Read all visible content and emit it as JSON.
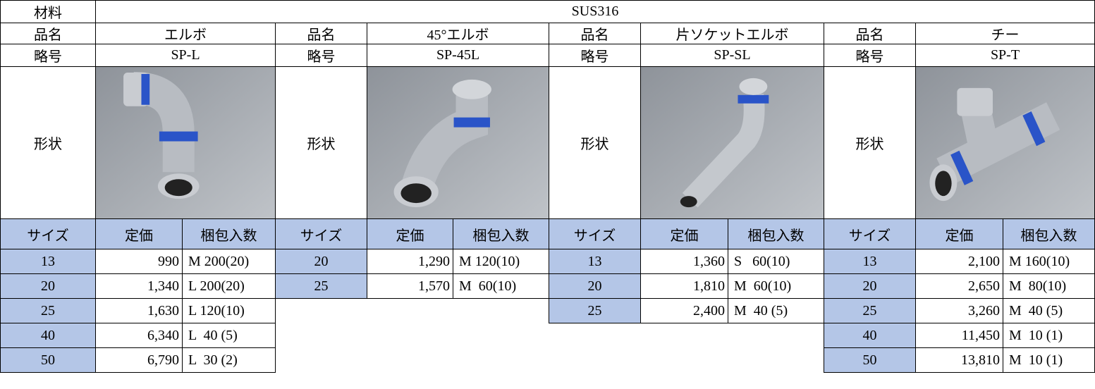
{
  "material": {
    "label": "材料",
    "value": "SUS316"
  },
  "products": [
    {
      "name_label": "品名",
      "name": "エルボ",
      "code_label": "略号",
      "code": "SP-L",
      "shape_label": "形状",
      "headers": [
        "サイズ",
        "定価",
        "梱包入数"
      ],
      "rows": [
        [
          "13",
          "990",
          "M 200(20)"
        ],
        [
          "20",
          "1,340",
          "L 200(20)"
        ],
        [
          "25",
          "1,630",
          "L 120(10)"
        ],
        [
          "40",
          "6,340",
          "L  40 (5)"
        ],
        [
          "50",
          "6,790",
          "L  30 (2)"
        ]
      ]
    },
    {
      "name_label": "品名",
      "name": "45°エルボ",
      "code_label": "略号",
      "code": "SP-45L",
      "shape_label": "形状",
      "headers": [
        "サイズ",
        "定価",
        "梱包入数"
      ],
      "rows": [
        [
          "20",
          "1,290",
          "M 120(10)"
        ],
        [
          "25",
          "1,570",
          "M  60(10)"
        ]
      ]
    },
    {
      "name_label": "品名",
      "name": "片ソケットエルボ",
      "code_label": "略号",
      "code": "SP-SL",
      "shape_label": "形状",
      "headers": [
        "サイズ",
        "定価",
        "梱包入数"
      ],
      "rows": [
        [
          "13",
          "1,360",
          "S   60(10)"
        ],
        [
          "20",
          "1,810",
          "M  60(10)"
        ],
        [
          "25",
          "2,400",
          "M  40 (5)"
        ]
      ]
    },
    {
      "name_label": "品名",
      "name": "チー",
      "code_label": "略号",
      "code": "SP-T",
      "shape_label": "形状",
      "headers": [
        "サイズ",
        "定価",
        "梱包入数"
      ],
      "rows": [
        [
          "13",
          "2,100",
          "M 160(10)"
        ],
        [
          "20",
          "2,650",
          "M  80(10)"
        ],
        [
          "25",
          "3,260",
          "M  40 (5)"
        ],
        [
          "40",
          "11,450",
          "M  10 (1)"
        ],
        [
          "50",
          "13,810",
          "M  10 (1)"
        ]
      ]
    }
  ]
}
